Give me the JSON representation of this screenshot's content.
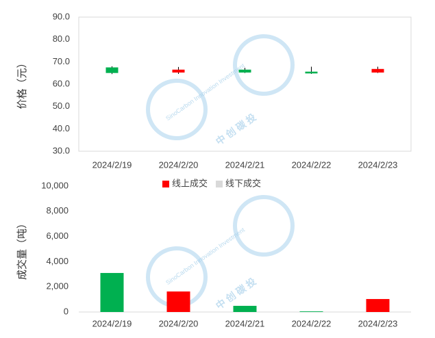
{
  "watermark": {
    "text": "SinoCarbon Innovation Investment",
    "brand": "中 创 碳 投"
  },
  "chart_data": [
    {
      "type": "candlestick",
      "y_label": "价格（元）",
      "categories": [
        "2024/2/19",
        "2024/2/20",
        "2024/2/21",
        "2024/2/22",
        "2024/2/23"
      ],
      "open": [
        67.5,
        65.2,
        66.5,
        65.6,
        65.2
      ],
      "high": [
        68.0,
        67.7,
        67.3,
        67.8,
        67.8
      ],
      "low": [
        64.5,
        64.6,
        65.0,
        64.6,
        65.0
      ],
      "close": [
        65.0,
        66.5,
        65.2,
        64.8,
        66.8
      ],
      "up_color": "#ff0000",
      "down_color": "#00b050",
      "ylim": [
        30,
        90
      ],
      "yticks": [
        {
          "value": 30,
          "label": "30.0"
        },
        {
          "value": 40,
          "label": "40.0"
        },
        {
          "value": 50,
          "label": "50.0"
        },
        {
          "value": 60,
          "label": "60.0"
        },
        {
          "value": 70,
          "label": "70.0"
        },
        {
          "value": 80,
          "label": "80.0"
        },
        {
          "value": 90,
          "label": "90.0"
        }
      ]
    },
    {
      "type": "bar",
      "y_label": "成交量（吨）",
      "categories": [
        "2024/2/19",
        "2024/2/20",
        "2024/2/21",
        "2024/2/22",
        "2024/2/23"
      ],
      "values": [
        3100,
        1630,
        490,
        50,
        1030
      ],
      "colors": [
        "#00b050",
        "#ff0000",
        "#00b050",
        "#00b050",
        "#ff0000"
      ],
      "legend": [
        {
          "name": "线上成交",
          "color": "#ff0000"
        },
        {
          "name": "线下成交",
          "color": "#d9d9d9"
        }
      ],
      "ylim": [
        0,
        10000
      ],
      "yticks": [
        0,
        {
          "value": 2000,
          "label": "2,000"
        },
        {
          "value": 4000,
          "label": "4,000"
        },
        {
          "value": 6000,
          "label": "6,000"
        },
        {
          "value": 8000,
          "label": "8,000"
        },
        {
          "value": 10000,
          "label": "10,000"
        }
      ]
    }
  ]
}
